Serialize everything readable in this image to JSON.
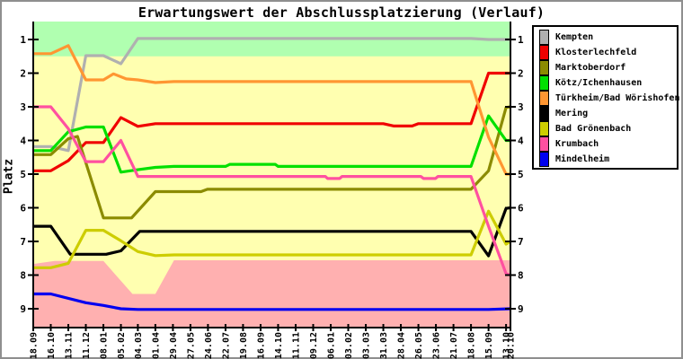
{
  "title": "Erwartungswert der Abschlussplatzierung (Verlauf)",
  "y_axis": {
    "label": "Platz"
  },
  "chart_data": {
    "type": "line",
    "title": "Erwartungswert der Abschlussplatzierung (Verlauf)",
    "ylabel": "Platz",
    "y_inverted": true,
    "ylim": [
      0.467,
      9.56
    ],
    "grid": false,
    "legend_position": "top-right",
    "y_ticks": [
      1,
      2,
      3,
      4,
      5,
      6,
      7,
      8,
      9
    ],
    "x_ticks": [
      {
        "label": "18.09",
        "f": 0.0
      },
      {
        "label": "16.10",
        "f": 0.0367
      },
      {
        "label": "13.11",
        "f": 0.0735
      },
      {
        "label": "11.12",
        "f": 0.1102
      },
      {
        "label": "08.01",
        "f": 0.147
      },
      {
        "label": "05.02",
        "f": 0.1837
      },
      {
        "label": "04.03",
        "f": 0.2192
      },
      {
        "label": "01.04",
        "f": 0.2559
      },
      {
        "label": "29.04",
        "f": 0.2927
      },
      {
        "label": "27.05",
        "f": 0.3294
      },
      {
        "label": "24.06",
        "f": 0.3661
      },
      {
        "label": "22.07",
        "f": 0.4029
      },
      {
        "label": "19.08",
        "f": 0.4396
      },
      {
        "label": "16.09",
        "f": 0.4764
      },
      {
        "label": "14.10",
        "f": 0.5131
      },
      {
        "label": "11.11",
        "f": 0.5499
      },
      {
        "label": "09.12",
        "f": 0.5866
      },
      {
        "label": "06.01",
        "f": 0.6234
      },
      {
        "label": "03.02",
        "f": 0.6601
      },
      {
        "label": "03.03",
        "f": 0.6969
      },
      {
        "label": "31.03",
        "f": 0.7336
      },
      {
        "label": "28.04",
        "f": 0.7703
      },
      {
        "label": "26.05",
        "f": 0.8071
      },
      {
        "label": "23.06",
        "f": 0.8438
      },
      {
        "label": "21.07",
        "f": 0.8806
      },
      {
        "label": "18.08",
        "f": 0.9173
      },
      {
        "label": "15.09",
        "f": 0.9541
      },
      {
        "label": "13.10",
        "f": 0.9908
      },
      {
        "label": "20.10",
        "f": 1.0
      }
    ],
    "zones": {
      "promotion": {
        "color": "#b0ffb0",
        "from_rank": 0.467,
        "to_rank": 1.5
      },
      "midfield": {
        "color": "#ffffb0"
      },
      "relegation": {
        "color": "#ffb0b0",
        "boundary": [
          [
            0,
            7.67
          ],
          [
            0.045,
            7.58
          ],
          [
            0.147,
            7.58
          ],
          [
            0.208,
            8.56
          ],
          [
            0.2559,
            8.56
          ],
          [
            0.2949,
            7.56
          ],
          [
            1,
            7.56
          ]
        ]
      }
    },
    "series": [
      {
        "name": "Kempten",
        "color": "#b0b0b0",
        "final_rank": 1,
        "points": [
          [
            0,
            4.18
          ],
          [
            0.0367,
            4.18
          ],
          [
            0.0735,
            4.3
          ],
          [
            0.1102,
            1.48
          ],
          [
            0.147,
            1.48
          ],
          [
            0.1837,
            1.72
          ],
          [
            0.2192,
            0.97
          ],
          [
            0.9173,
            0.97
          ],
          [
            0.9541,
            1.0
          ],
          [
            1,
            1.0
          ]
        ]
      },
      {
        "name": "Klosterlechfeld",
        "color": "#f00000",
        "final_rank": 2,
        "points": [
          [
            0,
            4.9
          ],
          [
            0.0367,
            4.9
          ],
          [
            0.0735,
            4.6
          ],
          [
            0.1102,
            4.06
          ],
          [
            0.147,
            4.06
          ],
          [
            0.1837,
            3.32
          ],
          [
            0.2192,
            3.58
          ],
          [
            0.2559,
            3.5
          ],
          [
            0.7336,
            3.5
          ],
          [
            0.756,
            3.57
          ],
          [
            0.794,
            3.57
          ],
          [
            0.8071,
            3.5
          ],
          [
            0.9173,
            3.5
          ],
          [
            0.9541,
            2.0
          ],
          [
            1,
            2.0
          ]
        ]
      },
      {
        "name": "Marktoberdorf",
        "color": "#8b8b00",
        "final_rank": 3,
        "points": [
          [
            0,
            4.42
          ],
          [
            0.0367,
            4.42
          ],
          [
            0.0735,
            3.95
          ],
          [
            0.0926,
            3.88
          ],
          [
            0.147,
            6.3
          ],
          [
            0.2061,
            6.3
          ],
          [
            0.2559,
            5.52
          ],
          [
            0.3516,
            5.52
          ],
          [
            0.3649,
            5.45
          ],
          [
            0.9173,
            5.45
          ],
          [
            0.9541,
            4.9
          ],
          [
            0.9908,
            3.02
          ],
          [
            1,
            3.0
          ]
        ]
      },
      {
        "name": "Kötz/Ichenhausen",
        "color": "#00e000",
        "final_rank": 4,
        "points": [
          [
            0,
            4.3
          ],
          [
            0.0367,
            4.3
          ],
          [
            0.0735,
            3.74
          ],
          [
            0.1102,
            3.6
          ],
          [
            0.147,
            3.6
          ],
          [
            0.1837,
            4.94
          ],
          [
            0.2192,
            4.87
          ],
          [
            0.2559,
            4.8
          ],
          [
            0.2949,
            4.77
          ],
          [
            0.4029,
            4.77
          ],
          [
            0.412,
            4.71
          ],
          [
            0.507,
            4.71
          ],
          [
            0.5131,
            4.77
          ],
          [
            0.9173,
            4.77
          ],
          [
            0.9541,
            3.27
          ],
          [
            0.9908,
            4.0
          ],
          [
            1,
            4.0
          ]
        ]
      },
      {
        "name": "Türkheim/Bad Wörishofen",
        "color": "#ff9632",
        "final_rank": 5,
        "points": [
          [
            0,
            1.42
          ],
          [
            0.0367,
            1.42
          ],
          [
            0.0735,
            1.18
          ],
          [
            0.1102,
            2.2
          ],
          [
            0.147,
            2.2
          ],
          [
            0.1682,
            2.02
          ],
          [
            0.1947,
            2.17
          ],
          [
            0.2192,
            2.2
          ],
          [
            0.2559,
            2.28
          ],
          [
            0.2949,
            2.25
          ],
          [
            0.9173,
            2.25
          ],
          [
            0.9541,
            3.9
          ],
          [
            0.9908,
            5.0
          ],
          [
            1,
            5.0
          ]
        ]
      },
      {
        "name": "Mering",
        "color": "#000000",
        "final_rank": 6,
        "points": [
          [
            0,
            6.55
          ],
          [
            0.0367,
            6.55
          ],
          [
            0.0775,
            7.38
          ],
          [
            0.153,
            7.38
          ],
          [
            0.1837,
            7.28
          ],
          [
            0.2231,
            6.7
          ],
          [
            0.9173,
            6.7
          ],
          [
            0.9541,
            7.43
          ],
          [
            0.9908,
            6.02
          ],
          [
            1,
            6.0
          ]
        ]
      },
      {
        "name": "Bad Grönenbach",
        "color": "#cdcd00",
        "final_rank": 7,
        "points": [
          [
            0,
            7.78
          ],
          [
            0.0367,
            7.78
          ],
          [
            0.0735,
            7.65
          ],
          [
            0.1102,
            6.67
          ],
          [
            0.147,
            6.67
          ],
          [
            0.1837,
            6.98
          ],
          [
            0.2192,
            7.3
          ],
          [
            0.2559,
            7.42
          ],
          [
            0.2949,
            7.4
          ],
          [
            0.9173,
            7.4
          ],
          [
            0.9541,
            6.1
          ],
          [
            0.9908,
            7.08
          ],
          [
            1,
            7.0
          ]
        ]
      },
      {
        "name": "Krumbach",
        "color": "#ff50a0",
        "final_rank": 8,
        "points": [
          [
            0,
            3.0
          ],
          [
            0.0367,
            3.0
          ],
          [
            0.0735,
            3.65
          ],
          [
            0.1102,
            4.63
          ],
          [
            0.147,
            4.63
          ],
          [
            0.1837,
            4.0
          ],
          [
            0.2192,
            5.07
          ],
          [
            0.612,
            5.07
          ],
          [
            0.617,
            5.13
          ],
          [
            0.642,
            5.13
          ],
          [
            0.647,
            5.07
          ],
          [
            0.812,
            5.07
          ],
          [
            0.818,
            5.13
          ],
          [
            0.843,
            5.13
          ],
          [
            0.848,
            5.07
          ],
          [
            0.9173,
            5.07
          ],
          [
            0.9541,
            6.55
          ],
          [
            0.9908,
            7.96
          ],
          [
            1,
            8.0
          ]
        ]
      },
      {
        "name": "Mindelheim",
        "color": "#0000f0",
        "final_rank": 9,
        "points": [
          [
            0,
            8.56
          ],
          [
            0.0367,
            8.56
          ],
          [
            0.1102,
            8.82
          ],
          [
            0.147,
            8.9
          ],
          [
            0.1837,
            9.0
          ],
          [
            0.2192,
            9.02
          ],
          [
            0.9541,
            9.02
          ],
          [
            1,
            9.0
          ]
        ]
      }
    ]
  }
}
